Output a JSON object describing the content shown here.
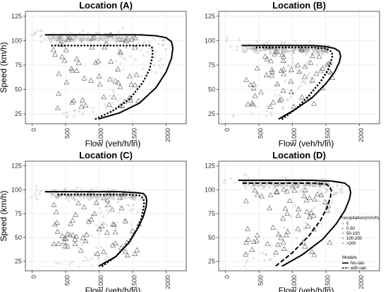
{
  "chart_data": [
    {
      "type": "scatter",
      "title": "Location (A)",
      "xlabel": "Flow (veh/h/ln)",
      "ylabel": "Speed (km/h)",
      "xlim": [
        -100,
        2300
      ],
      "ylim": [
        15,
        130
      ],
      "xticks": [
        0,
        500,
        1000,
        1500,
        2000
      ],
      "yticks": [
        25,
        50,
        75,
        100,
        125
      ],
      "grid": true,
      "series": [
        {
          "name": "No-rain",
          "style": "solid",
          "x": [
            1000,
            1300,
            1600,
            1850,
            2000,
            2080,
            2100,
            2080,
            2000,
            1850,
            1600,
            1300,
            1000,
            700,
            400,
            200
          ],
          "y": [
            20,
            26,
            36,
            52,
            68,
            82,
            92,
            99,
            103,
            105,
            106,
            106,
            106,
            106,
            106,
            106
          ]
        },
        {
          "name": "with rain",
          "style": "dotted",
          "x": [
            950,
            1200,
            1450,
            1650,
            1750,
            1790,
            1800,
            1790,
            1750,
            1600,
            1300,
            900,
            500,
            250
          ],
          "y": [
            20,
            28,
            40,
            57,
            70,
            82,
            88,
            93,
            95,
            95,
            95,
            95,
            95,
            95
          ]
        }
      ]
    },
    {
      "type": "scatter",
      "title": "Location (B)",
      "xlabel": "Flow (veh/h/ln)",
      "ylabel": "",
      "xlim": [
        -100,
        2300
      ],
      "ylim": [
        15,
        130
      ],
      "xticks": [
        0,
        500,
        1000,
        1500,
        2000
      ],
      "yticks": [
        25,
        50,
        75,
        100,
        125
      ],
      "grid": true,
      "series": [
        {
          "name": "No-rain",
          "style": "solid",
          "x": [
            800,
            1050,
            1300,
            1500,
            1630,
            1700,
            1720,
            1700,
            1630,
            1500,
            1300,
            1000,
            700,
            450,
            250
          ],
          "y": [
            20,
            30,
            42,
            56,
            68,
            78,
            84,
            89,
            92,
            94,
            95,
            95,
            95,
            95,
            95
          ]
        },
        {
          "name": "with rain",
          "style": "dotted",
          "x": [
            850,
            1050,
            1250,
            1420,
            1530,
            1580,
            1600,
            1580,
            1500,
            1300,
            1000,
            700,
            450
          ],
          "y": [
            20,
            30,
            44,
            58,
            70,
            80,
            85,
            89,
            92,
            93,
            93,
            93,
            93
          ]
        }
      ]
    },
    {
      "type": "scatter",
      "title": "Location (C)",
      "xlabel": "Flow (veh/h/ln)",
      "ylabel": "Speed (km/h)",
      "xlim": [
        -100,
        2300
      ],
      "ylim": [
        15,
        130
      ],
      "xticks": [
        0,
        500,
        1000,
        1500,
        2000
      ],
      "yticks": [
        25,
        50,
        75,
        100,
        125
      ],
      "grid": true,
      "series": [
        {
          "name": "No-rain",
          "style": "solid",
          "x": [
            1000,
            1250,
            1450,
            1580,
            1660,
            1700,
            1710,
            1700,
            1660,
            1550,
            1300,
            1000,
            700,
            400,
            200
          ],
          "y": [
            20,
            30,
            45,
            60,
            72,
            82,
            88,
            93,
            96,
            97,
            98,
            98,
            98,
            98,
            98
          ]
        },
        {
          "name": "with rain",
          "style": "dotted",
          "x": [
            1050,
            1250,
            1430,
            1560,
            1630,
            1660,
            1670,
            1660,
            1600,
            1400,
            1100,
            800,
            500,
            350
          ],
          "y": [
            20,
            30,
            44,
            58,
            70,
            80,
            86,
            91,
            94,
            95,
            95,
            95,
            95,
            95
          ]
        }
      ]
    },
    {
      "type": "scatter",
      "title": "Location (D)",
      "xlabel": "Flow (veh/h/ln)",
      "ylabel": "",
      "xlim": [
        -100,
        2300
      ],
      "ylim": [
        15,
        130
      ],
      "xticks": [
        0,
        500,
        1000,
        1500,
        2000
      ],
      "yticks": [
        25,
        50,
        75,
        100,
        125
      ],
      "grid": true,
      "legends": {
        "precipitation": {
          "title": "Precipitation(mm/h)",
          "items": [
            "0",
            "0-50",
            "50-100",
            "100-200",
            ">200"
          ]
        },
        "models": {
          "title": "Models",
          "items": [
            "No-rain",
            "with rain"
          ]
        }
      },
      "series": [
        {
          "name": "No-rain",
          "style": "solid",
          "x": [
            850,
            1150,
            1450,
            1650,
            1780,
            1850,
            1870,
            1850,
            1780,
            1600,
            1300,
            900,
            500,
            200
          ],
          "y": [
            20,
            32,
            48,
            64,
            78,
            90,
            97,
            103,
            107,
            109,
            110,
            110,
            110,
            110
          ]
        },
        {
          "name": "with rain",
          "style": "dashed",
          "x": [
            750,
            1000,
            1250,
            1420,
            1520,
            1570,
            1580,
            1560,
            1500,
            1300,
            1000,
            700,
            400,
            250
          ],
          "y": [
            20,
            34,
            52,
            68,
            82,
            93,
            99,
            103,
            106,
            107,
            107,
            107,
            107,
            107
          ]
        }
      ]
    }
  ]
}
